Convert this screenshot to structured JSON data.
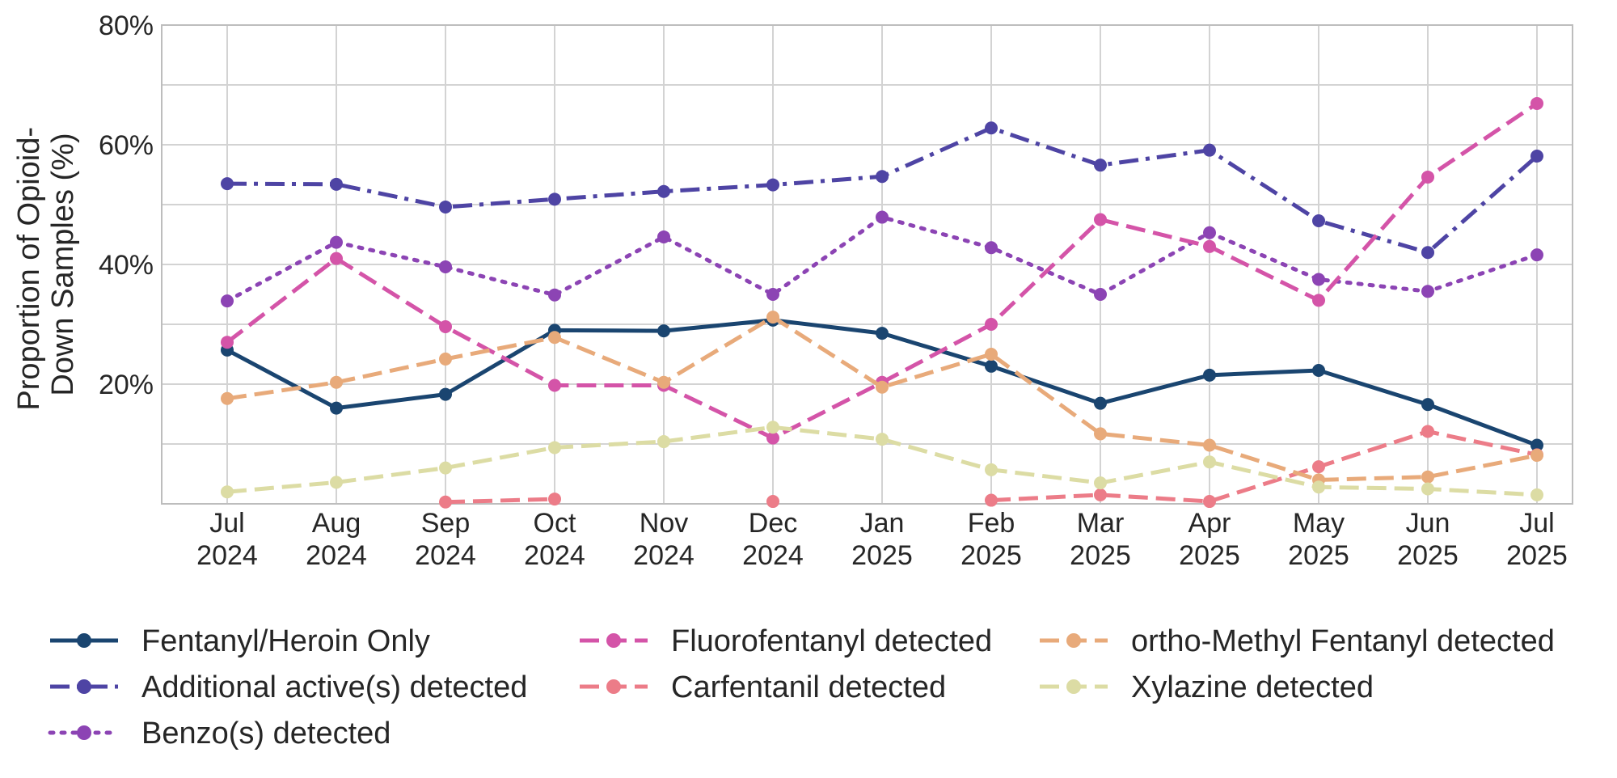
{
  "chart_data": {
    "type": "line",
    "title": "",
    "xlabel": "",
    "ylabel_lines": [
      "Proportion of Opioid-",
      "Down Samples (%)"
    ],
    "categories": [
      [
        "Jul",
        "2024"
      ],
      [
        "Aug",
        "2024"
      ],
      [
        "Sep",
        "2024"
      ],
      [
        "Oct",
        "2024"
      ],
      [
        "Nov",
        "2024"
      ],
      [
        "Dec",
        "2024"
      ],
      [
        "Jan",
        "2025"
      ],
      [
        "Feb",
        "2025"
      ],
      [
        "Mar",
        "2025"
      ],
      [
        "Apr",
        "2025"
      ],
      [
        "May",
        "2025"
      ],
      [
        "Jun",
        "2025"
      ],
      [
        "Jul",
        "2025"
      ]
    ],
    "ylim": [
      0,
      80
    ],
    "yticks": [
      20,
      40,
      60,
      80
    ],
    "ytick_labels": [
      "20%",
      "40%",
      "60%",
      "80%"
    ],
    "gridlines_y": [
      10,
      20,
      30,
      40,
      50,
      60,
      70,
      80
    ],
    "grid": true,
    "legend_position": "bottom",
    "series": [
      {
        "name": "Fentanyl/Heroin Only",
        "color": "#1a4570",
        "dash": "solid",
        "values": [
          25.7,
          16.0,
          18.3,
          29.0,
          28.9,
          30.7,
          28.5,
          23.0,
          16.8,
          21.5,
          22.3,
          16.6,
          9.8
        ]
      },
      {
        "name": "Additional active(s) detected",
        "color": "#4e44a4",
        "dash": "dashdot",
        "values": [
          53.5,
          53.4,
          49.6,
          50.9,
          52.2,
          53.3,
          54.7,
          62.8,
          56.6,
          59.1,
          47.3,
          42.0,
          58.1
        ]
      },
      {
        "name": "Benzo(s) detected",
        "color": "#8c44b4",
        "dash": "dotted",
        "values": [
          33.9,
          43.7,
          39.6,
          34.9,
          44.6,
          35.0,
          47.9,
          42.8,
          35.0,
          45.3,
          37.5,
          35.5,
          41.6
        ]
      },
      {
        "name": "Fluorofentanyl detected",
        "color": "#d454a8",
        "dash": "dashed",
        "values": [
          27.0,
          41.0,
          29.6,
          19.8,
          19.8,
          11.0,
          20.3,
          30.0,
          47.5,
          43.0,
          34.0,
          54.6,
          66.9
        ]
      },
      {
        "name": "Carfentanil detected",
        "color": "#ec7c88",
        "dash": "dashed",
        "values": [
          null,
          null,
          0.3,
          0.8,
          null,
          0.4,
          null,
          0.6,
          1.5,
          0.4,
          6.2,
          12.1,
          8.2
        ]
      },
      {
        "name": "ortho-Methyl Fentanyl detected",
        "color": "#e8aa7a",
        "dash": "dashed",
        "values": [
          17.6,
          20.3,
          24.2,
          27.8,
          20.3,
          31.2,
          19.5,
          25.0,
          11.7,
          9.8,
          4.0,
          4.5,
          8.1
        ]
      },
      {
        "name": "Xylazine detected",
        "color": "#dcdca4",
        "dash": "dashed",
        "values": [
          2.0,
          3.6,
          6.0,
          9.4,
          10.4,
          12.8,
          10.8,
          5.7,
          3.5,
          7.0,
          2.8,
          2.5,
          1.5
        ]
      }
    ],
    "legend_order": [
      "Fentanyl/Heroin Only",
      "Additional active(s) detected",
      "Benzo(s) detected",
      "Fluorofentanyl detected",
      "Carfentanil detected",
      "ortho-Methyl Fentanyl detected",
      "Xylazine detected"
    ]
  }
}
